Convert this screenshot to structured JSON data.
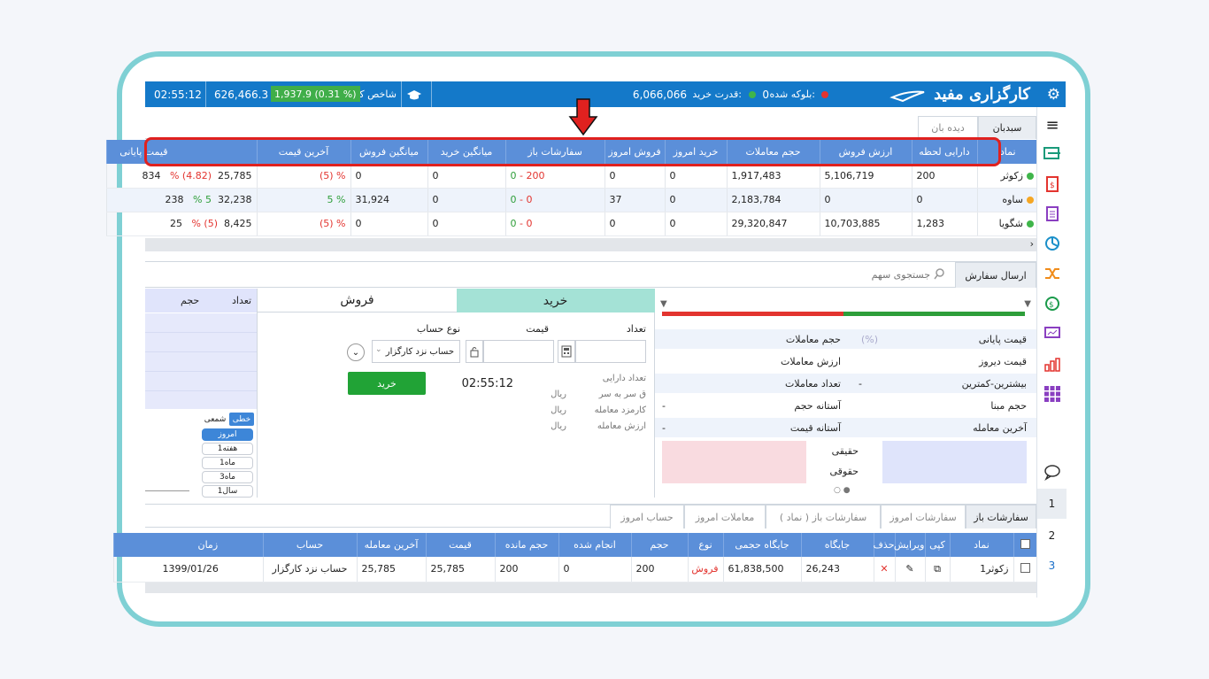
{
  "topbar": {
    "logo": "کارگزاری مفید",
    "blocked_label": "بلوکه شده:",
    "blocked_value": "0",
    "power_label": "قدرت خرید:",
    "power_value": "6,066,066",
    "index_label": "شاخص کل",
    "index_change": "1,937.9 (0.31 %)",
    "index_value": "626,466.3",
    "clock": "02:55:12"
  },
  "tabs_top": [
    "سبدبان",
    "دیده بان"
  ],
  "watch": {
    "headers": [
      "نماد",
      "دارایی لحظه",
      "ارزش فروش",
      "حجم معاملات",
      "خرید امروز",
      "فروش امروز",
      "سفارشات باز",
      "میانگین خرید",
      "میانگین فروش",
      "آخرین قیمت",
      "قیمت پایانی"
    ],
    "rows": [
      {
        "dot": "#3fb54a",
        "symbol": "زکوثر",
        "holding": "200",
        "sell_value": "5,106,719",
        "volume": "1,917,483",
        "buy_today": "0",
        "sell_today": "0",
        "open_a": "0",
        "open_b": "200",
        "avg_buy": "0",
        "avg_sell": "0",
        "last_pct": "(5) %",
        "last": "25,785",
        "close_pct": "(4.82) %",
        "close": "834"
      },
      {
        "dot": "#f5a623",
        "symbol": "ساوه",
        "holding": "0",
        "sell_value": "0",
        "volume": "2,183,784",
        "buy_today": "0",
        "sell_today": "37",
        "open_a": "0",
        "open_b": "0",
        "avg_buy": "0",
        "avg_sell": "31,924",
        "last_pct": "5 %",
        "last": "32,238",
        "close_pct": "5 %",
        "close": "238"
      },
      {
        "dot": "#3fb54a",
        "symbol": "شگویا",
        "holding": "1,283",
        "sell_value": "10,703,885",
        "volume": "29,320,847",
        "buy_today": "0",
        "sell_today": "0",
        "open_a": "0",
        "open_b": "0",
        "avg_buy": "0",
        "avg_sell": "0",
        "last_pct": "(5) %",
        "last": "8,425",
        "close_pct": "(5) %",
        "close": "25"
      }
    ]
  },
  "order": {
    "tab": "ارسال سفارش",
    "search_placeholder": "جستجوی سهم",
    "info": [
      {
        "label": "قیمت پایانی",
        "value": "(%)",
        "label2": "حجم معاملات",
        "value2": ""
      },
      {
        "label": "قیمت دیروز",
        "value": "",
        "label2": "ارزش معاملات",
        "value2": ""
      },
      {
        "label": "بیشترین-کمترین",
        "value": "-",
        "label2": "تعداد معاملات",
        "value2": ""
      },
      {
        "label": "حجم مبنا",
        "value": "",
        "label2": "آستانه حجم",
        "value2": "-"
      },
      {
        "label": "آخرین معامله",
        "value": "",
        "label2": "آستانه قیمت",
        "value2": "-"
      }
    ],
    "real_label": "حقیقی",
    "legal_label": "حقوقی",
    "buy_tab": "خرید",
    "sell_tab": "فروش",
    "count_label": "تعداد",
    "price_label": "قیمت",
    "account_type_label": "نوع حساب",
    "account_value": "حساب نزد کارگزار",
    "buy_button": "خرید",
    "time": "02:55:12",
    "details": [
      "تعداد دارایی",
      "ق سر به سر",
      "کارمزد معامله",
      "ارزش معامله"
    ],
    "rial": "ریال",
    "right_headers": [
      "تعداد",
      "حجم"
    ],
    "chart_types": [
      "خطی",
      "شمعی"
    ],
    "periods": [
      "امروز",
      "1هفته",
      "1ماه",
      "3ماه",
      "1سال"
    ]
  },
  "bottom": {
    "tabs": [
      "سفارشات باز",
      "سفارشات امروز",
      "سفارشات باز ( نماد )",
      "معاملات امروز",
      "حساب امروز"
    ],
    "headers": [
      "نماد",
      "کپی",
      "ویرایش",
      "حذف",
      "جایگاه",
      "جایگاه حجمی",
      "نوع",
      "حجم",
      "انجام شده",
      "حجم مانده",
      "قیمت",
      "آخرین معامله",
      "حساب",
      "زمان"
    ],
    "row": {
      "symbol": "زکوثر1",
      "position": "26,243",
      "vol_position": "61,838,500",
      "type": "فروش",
      "volume": "200",
      "done": "0",
      "remaining": "200",
      "price": "25,785",
      "last": "25,785",
      "account": "حساب نزد کارگزار",
      "time": "1399/01/26"
    }
  },
  "side_numbers": [
    "1",
    "2",
    "3"
  ]
}
